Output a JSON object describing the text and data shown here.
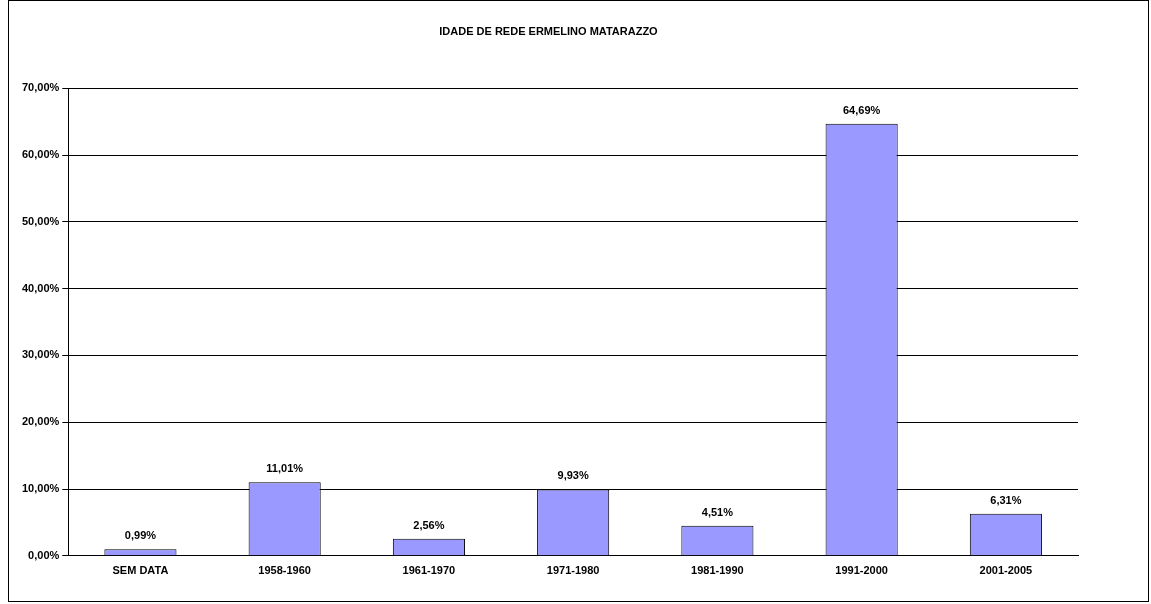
{
  "chart_data": {
    "type": "bar",
    "title": "IDADE DE REDE ERMELINO MATARAZZO",
    "categories": [
      "SEM DATA",
      "1958-1960",
      "1961-1970",
      "1971-1980",
      "1981-1990",
      "1991-2000",
      "2001-2005"
    ],
    "values": [
      0.99,
      11.01,
      2.56,
      9.93,
      4.51,
      64.69,
      6.31
    ],
    "value_labels": [
      "0,99%",
      "11,01%",
      "2,56%",
      "9,93%",
      "4,51%",
      "64,69%",
      "6,31%"
    ],
    "color": "#9999ff",
    "ylim": [
      0,
      70
    ],
    "yticks": [
      {
        "value": 0,
        "label": "0,00%"
      },
      {
        "value": 10,
        "label": "10,00%"
      },
      {
        "value": 20,
        "label": "20,00%"
      },
      {
        "value": 30,
        "label": "30,00%"
      },
      {
        "value": 40,
        "label": "40,00%"
      },
      {
        "value": 50,
        "label": "50,00%"
      },
      {
        "value": 60,
        "label": "60,00%"
      },
      {
        "value": 70,
        "label": "70,00%"
      }
    ],
    "grid": "y",
    "legend": false
  }
}
